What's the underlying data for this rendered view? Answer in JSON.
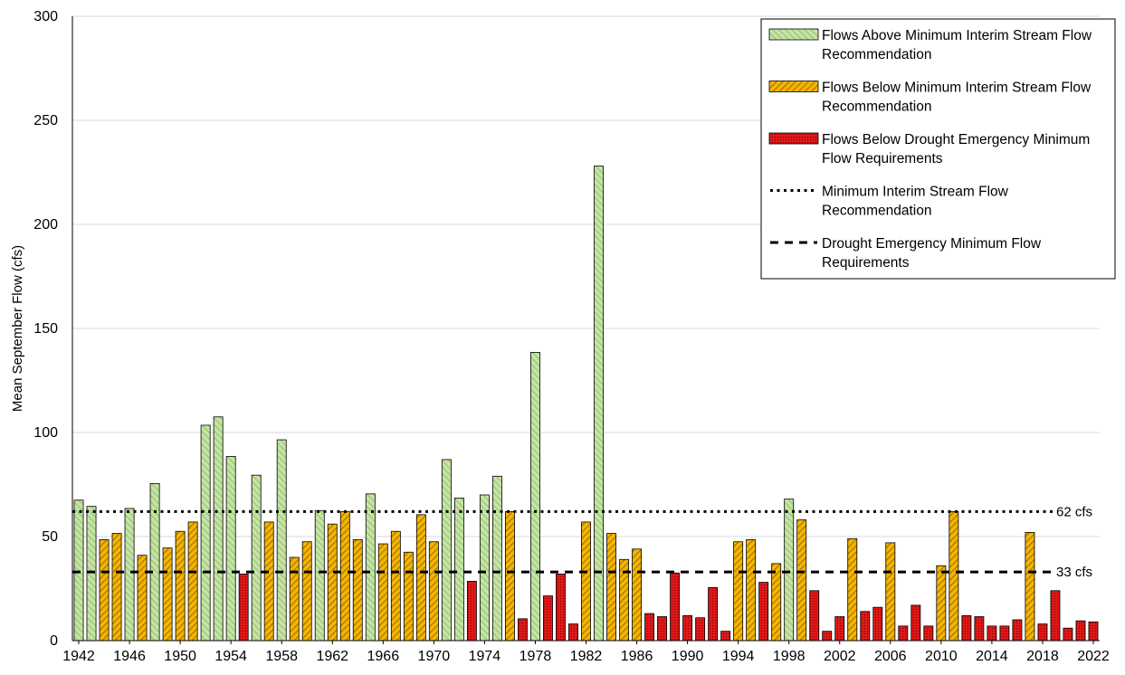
{
  "chart_data": {
    "type": "bar",
    "title": "",
    "xlabel": "",
    "ylabel": "Mean September Flow (cfs)",
    "ylim": [
      0,
      300
    ],
    "yticks": [
      0,
      50,
      100,
      150,
      200,
      250,
      300
    ],
    "xtick_labels": [
      "1942",
      "1946",
      "1950",
      "1954",
      "1958",
      "1962",
      "1966",
      "1970",
      "1974",
      "1978",
      "1982",
      "1986",
      "1990",
      "1994",
      "1998",
      "2002",
      "2006",
      "2010",
      "2014",
      "2018",
      "2022"
    ],
    "grid": "horizontal",
    "legend_position": "top-right",
    "x": [
      1942,
      1943,
      1944,
      1945,
      1946,
      1947,
      1948,
      1949,
      1950,
      1951,
      1952,
      1953,
      1954,
      1955,
      1956,
      1957,
      1958,
      1959,
      1960,
      1961,
      1962,
      1963,
      1964,
      1965,
      1966,
      1967,
      1968,
      1969,
      1970,
      1971,
      1972,
      1973,
      1974,
      1975,
      1976,
      1977,
      1978,
      1979,
      1980,
      1981,
      1982,
      1983,
      1984,
      1985,
      1986,
      1987,
      1988,
      1989,
      1990,
      1991,
      1992,
      1993,
      1994,
      1995,
      1996,
      1997,
      1998,
      1999,
      2000,
      2001,
      2002,
      2003,
      2004,
      2005,
      2006,
      2007,
      2008,
      2009,
      2010,
      2011,
      2012,
      2013,
      2014,
      2015,
      2016,
      2017,
      2018,
      2019,
      2020,
      2021,
      2022
    ],
    "values": [
      67.5,
      64.5,
      48.5,
      51.5,
      63.5,
      41,
      75.5,
      44.5,
      52.5,
      57,
      103.5,
      107.5,
      88.5,
      32,
      79.5,
      57,
      96.5,
      40,
      47.5,
      62.5,
      56,
      62,
      48.5,
      70.5,
      46.5,
      52.5,
      42.5,
      60.5,
      47.5,
      87,
      68.5,
      28.5,
      70,
      79,
      62,
      10.5,
      138.5,
      21.5,
      32,
      8,
      57,
      228,
      51.5,
      39,
      44,
      13,
      11.5,
      32.5,
      12,
      11,
      25.5,
      4.5,
      47.5,
      48.5,
      28,
      37,
      68,
      58,
      24,
      4.5,
      11.5,
      49,
      14,
      16,
      47,
      7,
      17,
      7,
      36,
      62,
      12,
      11.5,
      7,
      7,
      10,
      52,
      8,
      24,
      6,
      9.5,
      9
    ],
    "categories_map": [
      "above",
      "above",
      "below",
      "below",
      "above",
      "below",
      "above",
      "below",
      "below",
      "below",
      "above",
      "above",
      "above",
      "drought",
      "above",
      "below",
      "above",
      "below",
      "below",
      "above",
      "below",
      "below",
      "below",
      "above",
      "below",
      "below",
      "below",
      "below",
      "below",
      "above",
      "above",
      "drought",
      "above",
      "above",
      "below",
      "drought",
      "above",
      "drought",
      "drought",
      "drought",
      "below",
      "above",
      "below",
      "below",
      "below",
      "drought",
      "drought",
      "drought",
      "drought",
      "drought",
      "drought",
      "drought",
      "below",
      "below",
      "drought",
      "below",
      "above",
      "below",
      "drought",
      "drought",
      "drought",
      "below",
      "drought",
      "drought",
      "below",
      "drought",
      "drought",
      "drought",
      "below",
      "below",
      "drought",
      "drought",
      "drought",
      "drought",
      "drought",
      "below",
      "drought",
      "drought",
      "drought",
      "drought",
      "drought"
    ],
    "series": [
      {
        "key": "above",
        "name": "Flows Above Minimum Interim Stream Flow Recommendation",
        "name_lines": [
          "Flows Above Minimum Interim Stream Flow",
          "Recommendation"
        ],
        "color": "#c6e3a5",
        "pattern": "#8dc06b"
      },
      {
        "key": "below",
        "name": "Flows Below Minimum Interim Stream Flow Recommendation",
        "name_lines": [
          "Flows Below Minimum Interim Stream Flow",
          "Recommendation"
        ],
        "color": "#f5b400",
        "pattern": "#7a5a00"
      },
      {
        "key": "drought",
        "name": "Flows Below Drought Emergency Minimum Flow Requirements",
        "name_lines": [
          "Flows Below Drought Emergency Minimum",
          "Flow Requirements"
        ],
        "color": "#e01818",
        "pattern": "#7a0000"
      }
    ],
    "reference_lines": [
      {
        "key": "interim",
        "value": 62,
        "label": "62 cfs",
        "name": "Minimum Interim Stream Flow Recommendation",
        "name_lines": [
          "Minimum Interim Stream Flow",
          "Recommendation"
        ],
        "style": "dotted"
      },
      {
        "key": "drought",
        "value": 33,
        "label": "33 cfs",
        "name": "Drought Emergency Minimum Flow Requirements",
        "name_lines": [
          "Drought Emergency Minimum Flow",
          "Requirements"
        ],
        "style": "dashed"
      }
    ]
  }
}
